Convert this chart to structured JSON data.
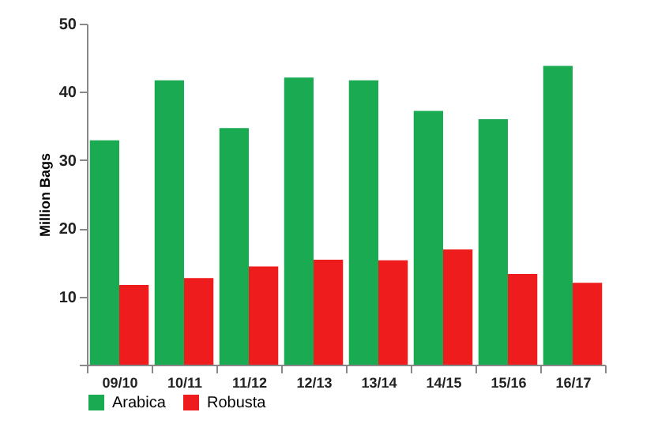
{
  "chart_data": {
    "type": "bar",
    "ylabel": "Million Bags",
    "categories": [
      "09/10",
      "10/11",
      "11/12",
      "12/13",
      "13/14",
      "14/15",
      "15/16",
      "16/17"
    ],
    "series": [
      {
        "name": "Arabica",
        "color": "#1aab52",
        "values": [
          32.9,
          41.7,
          34.7,
          42.1,
          41.7,
          37.2,
          36.0,
          43.8
        ]
      },
      {
        "name": "Robusta",
        "color": "#ee1c1c",
        "values": [
          11.7,
          12.7,
          14.4,
          15.4,
          15.3,
          16.9,
          13.3,
          12.0
        ]
      }
    ],
    "ylim": [
      0,
      50
    ],
    "yticks": [
      {
        "value": 0,
        "label": null
      },
      10,
      20,
      30,
      40,
      50
    ],
    "grid": false,
    "legend": "bottom"
  }
}
